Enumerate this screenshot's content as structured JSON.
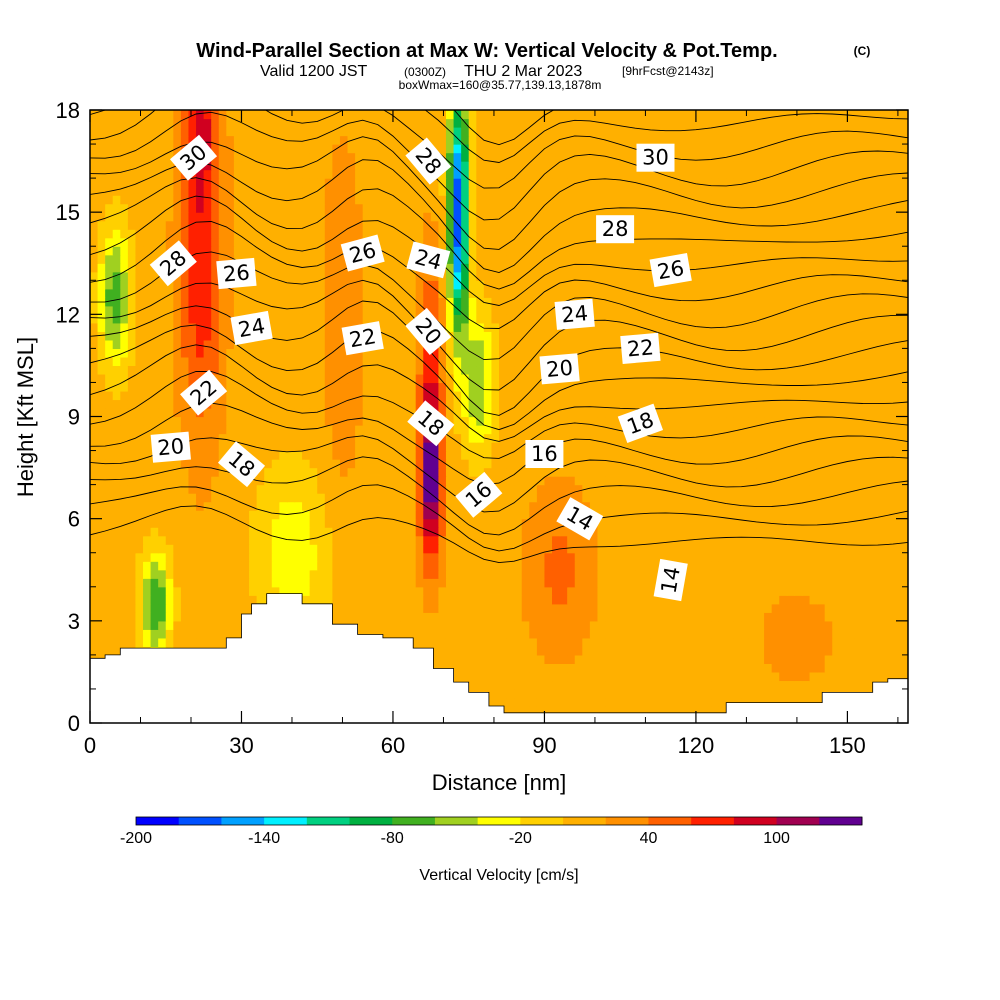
{
  "title": {
    "main": "Wind-Parallel Section at Max W: Vertical Velocity & Pot.Temp.",
    "copyright": "(C)",
    "valid_prefix": "Valid 1200 JST",
    "valid_utc": "(0300Z)",
    "valid_date": "THU 2 Mar 2023",
    "forecast": "[9hrFcst@2143z]",
    "box": "boxWmax=160@35.77,139.13,1878m"
  },
  "chart_data": {
    "type": "heatmap",
    "xlabel": "Distance [nm]",
    "ylabel": "Height [Kft MSL]",
    "xlim": [
      0,
      162
    ],
    "ylim": [
      0,
      18
    ],
    "x_ticks": [
      "0",
      "30",
      "60",
      "90",
      "120",
      "150"
    ],
    "y_ticks": [
      "0",
      "3",
      "6",
      "9",
      "12",
      "15",
      "18"
    ],
    "x_tick_values": [
      0,
      30,
      60,
      90,
      120,
      150
    ],
    "y_tick_values": [
      0,
      3,
      6,
      9,
      12,
      15,
      18
    ],
    "colorbar": {
      "label": "Vertical Velocity [cm/s]",
      "tick_labels": [
        "-200",
        "-140",
        "-80",
        "-20",
        "40",
        "100"
      ],
      "tick_values": [
        -200,
        -140,
        -80,
        -20,
        40,
        100
      ],
      "min": -200,
      "step": 20,
      "colors": [
        "#0000ff",
        "#0050ff",
        "#00a0ff",
        "#00f0ff",
        "#00d080",
        "#00b040",
        "#40b020",
        "#a0d020",
        "#ffff00",
        "#ffd000",
        "#ffb000",
        "#ff9000",
        "#ff6000",
        "#ff2000",
        "#d00020",
        "#a00050",
        "#600090"
      ]
    },
    "velocity_features": [
      {
        "x": 67.5,
        "y": 7.0,
        "sx": 2.2,
        "sy": 2.4,
        "amp": 110
      },
      {
        "x": 67.5,
        "y": 10.5,
        "sx": 2.5,
        "sy": 3.5,
        "amp": 55
      },
      {
        "x": 22,
        "y": 14,
        "sx": 4.5,
        "sy": 5.5,
        "amp": 70
      },
      {
        "x": 22,
        "y": 17.5,
        "sx": 2.5,
        "sy": 1.5,
        "amp": 40
      },
      {
        "x": 50,
        "y": 12,
        "sx": 4,
        "sy": 5,
        "amp": 30
      },
      {
        "x": 73,
        "y": 15,
        "sx": 2.0,
        "sy": 3.5,
        "amp": -190
      },
      {
        "x": 77,
        "y": 10,
        "sx": 3,
        "sy": 2,
        "amp": -70
      },
      {
        "x": 5,
        "y": 12.5,
        "sx": 3,
        "sy": 2,
        "amp": -85
      },
      {
        "x": 13,
        "y": 3.5,
        "sx": 3,
        "sy": 1.5,
        "amp": -90
      },
      {
        "x": 40,
        "y": 5,
        "sx": 7,
        "sy": 2.5,
        "amp": -45
      },
      {
        "x": 93,
        "y": 4.5,
        "sx": 7,
        "sy": 2.5,
        "amp": 35
      },
      {
        "x": 140,
        "y": 2.5,
        "sx": 8,
        "sy": 1.5,
        "amp": 20
      }
    ],
    "velocity_background": 10,
    "terrain": {
      "x": [
        0,
        3,
        3,
        6,
        6,
        27,
        27,
        30,
        30,
        32,
        32,
        35,
        35,
        42,
        42,
        48,
        48,
        53,
        53,
        58,
        58,
        64,
        64,
        68,
        68,
        72,
        72,
        75,
        75,
        79,
        79,
        82,
        82,
        126,
        126,
        145,
        145,
        155,
        155,
        158,
        158,
        162
      ],
      "y": [
        1.9,
        1.9,
        2.0,
        2.0,
        2.2,
        2.2,
        2.5,
        2.5,
        3.2,
        3.2,
        3.5,
        3.5,
        3.8,
        3.8,
        3.5,
        3.5,
        2.9,
        2.9,
        2.6,
        2.6,
        2.5,
        2.5,
        2.2,
        2.2,
        1.6,
        1.6,
        1.2,
        1.2,
        0.9,
        0.9,
        0.5,
        0.5,
        0.3,
        0.3,
        0.6,
        0.6,
        0.9,
        0.9,
        1.2,
        1.2,
        1.3,
        1.3
      ]
    },
    "theta_contours": {
      "levels": [
        12,
        13,
        14,
        15,
        16,
        17,
        18,
        19,
        20,
        21,
        22,
        23,
        24,
        25,
        26,
        27,
        28,
        29,
        30,
        31
      ],
      "labels": [
        {
          "text": "30",
          "x": 20.5,
          "y": 16.6,
          "angle": -40
        },
        {
          "text": "28",
          "x": 16.5,
          "y": 13.5,
          "angle": -40
        },
        {
          "text": "26",
          "x": 29,
          "y": 13.2,
          "angle": -5
        },
        {
          "text": "24",
          "x": 32,
          "y": 11.6,
          "angle": -10
        },
        {
          "text": "22",
          "x": 22.5,
          "y": 9.7,
          "angle": -40
        },
        {
          "text": "20",
          "x": 16,
          "y": 8.1,
          "angle": -5
        },
        {
          "text": "18",
          "x": 30,
          "y": 7.6,
          "angle": 40
        },
        {
          "text": "26",
          "x": 54,
          "y": 13.8,
          "angle": -15
        },
        {
          "text": "22",
          "x": 54,
          "y": 11.3,
          "angle": -10
        },
        {
          "text": "28",
          "x": 67,
          "y": 16.5,
          "angle": 50
        },
        {
          "text": "24",
          "x": 67,
          "y": 13.6,
          "angle": 15
        },
        {
          "text": "20",
          "x": 67,
          "y": 11.5,
          "angle": 50
        },
        {
          "text": "18",
          "x": 67.5,
          "y": 8.8,
          "angle": 40
        },
        {
          "text": "16",
          "x": 77,
          "y": 6.7,
          "angle": -40
        },
        {
          "text": "30",
          "x": 112,
          "y": 16.6,
          "angle": 0
        },
        {
          "text": "28",
          "x": 104,
          "y": 14.5,
          "angle": 0
        },
        {
          "text": "26",
          "x": 115,
          "y": 13.3,
          "angle": -10
        },
        {
          "text": "24",
          "x": 96,
          "y": 12.0,
          "angle": -5
        },
        {
          "text": "22",
          "x": 109,
          "y": 11.0,
          "angle": -5
        },
        {
          "text": "20",
          "x": 93,
          "y": 10.4,
          "angle": -5
        },
        {
          "text": "18",
          "x": 109,
          "y": 8.8,
          "angle": -20
        },
        {
          "text": "16",
          "x": 90,
          "y": 7.9,
          "angle": 0
        },
        {
          "text": "14",
          "x": 97,
          "y": 6.0,
          "angle": 30
        },
        {
          "text": "14",
          "x": 115,
          "y": 4.2,
          "angle": -80
        }
      ]
    }
  }
}
